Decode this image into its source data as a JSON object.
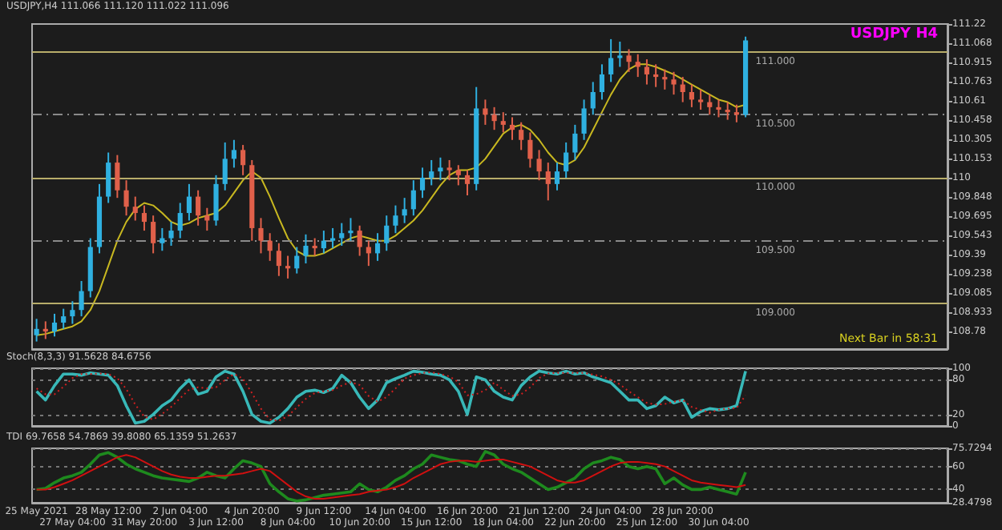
{
  "chart_data": [
    {
      "type": "candlestick",
      "title": "USDJPY,H4 111.066 111.120 111.022 111.096",
      "subtitle": "USDJPY H4",
      "annotations": [
        "Next Bar in 58:31"
      ],
      "categories": [
        null,
        null,
        null,
        null,
        null,
        null,
        null,
        null,
        null,
        null,
        null,
        null,
        null,
        null,
        null,
        null,
        null,
        null,
        null,
        null,
        null,
        null,
        null,
        null,
        null,
        null,
        null,
        null,
        null,
        null,
        null,
        null,
        null,
        null,
        null,
        null,
        null,
        null,
        null,
        null,
        null,
        null,
        null,
        null,
        null,
        null,
        null,
        null,
        null,
        null,
        null,
        null,
        null,
        null,
        null,
        null,
        null,
        null,
        null,
        null,
        null,
        null,
        null,
        null,
        null,
        null,
        null,
        null,
        null,
        null,
        null,
        null,
        null,
        null,
        null,
        null,
        null,
        null,
        null,
        null
      ],
      "series": [
        {
          "type": "candlestick",
          "ohlc": [
            [
              108.75,
              108.88,
              108.7,
              108.8
            ],
            [
              108.8,
              108.86,
              108.72,
              108.78
            ],
            [
              108.78,
              108.92,
              108.74,
              108.85
            ],
            [
              108.85,
              108.96,
              108.8,
              108.9
            ],
            [
              108.9,
              109.02,
              108.84,
              108.95
            ],
            [
              108.95,
              109.18,
              108.9,
              109.1
            ],
            [
              109.1,
              109.52,
              109.05,
              109.45
            ],
            [
              109.45,
              109.95,
              109.4,
              109.85
            ],
            [
              109.85,
              110.2,
              109.8,
              110.12
            ],
            [
              110.12,
              110.18,
              109.84,
              109.9
            ],
            [
              109.9,
              109.98,
              109.7,
              109.77
            ],
            [
              109.77,
              109.85,
              109.66,
              109.72
            ],
            [
              109.72,
              109.78,
              109.58,
              109.65
            ],
            [
              109.65,
              109.7,
              109.4,
              109.48
            ],
            [
              109.48,
              109.6,
              109.42,
              109.52
            ],
            [
              109.52,
              109.65,
              109.46,
              109.58
            ],
            [
              109.58,
              109.8,
              109.52,
              109.72
            ],
            [
              109.72,
              109.95,
              109.66,
              109.85
            ],
            [
              109.85,
              109.9,
              109.62,
              109.7
            ],
            [
              109.7,
              109.76,
              109.58,
              109.66
            ],
            [
              109.66,
              110.02,
              109.62,
              109.95
            ],
            [
              109.95,
              110.28,
              109.9,
              110.15
            ],
            [
              110.15,
              110.3,
              110.08,
              110.22
            ],
            [
              110.22,
              110.26,
              110.02,
              110.1
            ],
            [
              110.1,
              110.14,
              109.5,
              109.6
            ],
            [
              109.6,
              109.68,
              109.4,
              109.5
            ],
            [
              109.5,
              109.56,
              109.34,
              109.42
            ],
            [
              109.42,
              109.48,
              109.22,
              109.3
            ],
            [
              109.3,
              109.38,
              109.2,
              109.28
            ],
            [
              109.28,
              109.45,
              109.24,
              109.38
            ],
            [
              109.38,
              109.55,
              109.32,
              109.46
            ],
            [
              109.46,
              109.52,
              109.38,
              109.44
            ],
            [
              109.44,
              109.58,
              109.4,
              109.5
            ],
            [
              109.5,
              109.6,
              109.44,
              109.52
            ],
            [
              109.52,
              109.64,
              109.46,
              109.56
            ],
            [
              109.56,
              109.68,
              109.5,
              109.58
            ],
            [
              109.58,
              109.62,
              109.38,
              109.45
            ],
            [
              109.45,
              109.5,
              109.3,
              109.4
            ],
            [
              109.4,
              109.56,
              109.34,
              109.48
            ],
            [
              109.48,
              109.7,
              109.42,
              109.62
            ],
            [
              109.62,
              109.78,
              109.56,
              109.7
            ],
            [
              109.7,
              109.84,
              109.64,
              109.75
            ],
            [
              109.75,
              109.98,
              109.7,
              109.9
            ],
            [
              109.9,
              110.08,
              109.84,
              110.0
            ],
            [
              110.0,
              110.14,
              109.94,
              110.05
            ],
            [
              110.05,
              110.16,
              109.98,
              110.08
            ],
            [
              110.08,
              110.14,
              109.98,
              110.06
            ],
            [
              110.06,
              110.1,
              109.94,
              110.02
            ],
            [
              110.02,
              110.06,
              109.86,
              109.95
            ],
            [
              109.95,
              110.72,
              109.9,
              110.55
            ],
            [
              110.55,
              110.62,
              110.42,
              110.5
            ],
            [
              110.5,
              110.56,
              110.38,
              110.45
            ],
            [
              110.45,
              110.52,
              110.36,
              110.42
            ],
            [
              110.42,
              110.48,
              110.3,
              110.38
            ],
            [
              110.38,
              110.44,
              110.22,
              110.3
            ],
            [
              110.3,
              110.36,
              110.08,
              110.15
            ],
            [
              110.15,
              110.22,
              109.98,
              110.05
            ],
            [
              110.05,
              110.12,
              109.82,
              109.95
            ],
            [
              109.95,
              110.12,
              109.9,
              110.05
            ],
            [
              110.05,
              110.28,
              110.0,
              110.2
            ],
            [
              110.2,
              110.42,
              110.14,
              110.35
            ],
            [
              110.35,
              110.62,
              110.3,
              110.55
            ],
            [
              110.55,
              110.76,
              110.5,
              110.68
            ],
            [
              110.68,
              110.9,
              110.62,
              110.82
            ],
            [
              110.82,
              111.1,
              110.76,
              110.95
            ],
            [
              110.95,
              111.08,
              110.88,
              110.97
            ],
            [
              110.97,
              111.02,
              110.84,
              110.92
            ],
            [
              110.92,
              110.98,
              110.8,
              110.88
            ],
            [
              110.88,
              110.94,
              110.74,
              110.82
            ],
            [
              110.82,
              110.9,
              110.72,
              110.8
            ],
            [
              110.8,
              110.86,
              110.7,
              110.78
            ],
            [
              110.78,
              110.84,
              110.66,
              110.74
            ],
            [
              110.74,
              110.8,
              110.6,
              110.68
            ],
            [
              110.68,
              110.74,
              110.56,
              110.62
            ],
            [
              110.62,
              110.7,
              110.54,
              110.6
            ],
            [
              110.6,
              110.66,
              110.5,
              110.56
            ],
            [
              110.56,
              110.62,
              110.48,
              110.54
            ],
            [
              110.54,
              110.6,
              110.46,
              110.52
            ],
            [
              110.52,
              110.58,
              110.44,
              110.5
            ],
            [
              110.5,
              111.12,
              110.48,
              111.09
            ]
          ]
        },
        {
          "type": "line",
          "color": "#c8b820",
          "values": [
            108.75,
            108.76,
            108.78,
            108.8,
            108.82,
            108.86,
            108.95,
            109.1,
            109.3,
            109.5,
            109.65,
            109.75,
            109.8,
            109.78,
            109.72,
            109.65,
            109.62,
            109.64,
            109.68,
            109.7,
            109.72,
            109.78,
            109.88,
            109.98,
            110.05,
            110.0,
            109.85,
            109.68,
            109.52,
            109.42,
            109.38,
            109.38,
            109.4,
            109.44,
            109.48,
            109.52,
            109.54,
            109.52,
            109.5,
            109.5,
            109.54,
            109.6,
            109.66,
            109.74,
            109.84,
            109.94,
            110.02,
            110.06,
            110.06,
            110.08,
            110.15,
            110.25,
            110.35,
            110.4,
            110.42,
            110.38,
            110.3,
            110.2,
            110.12,
            110.1,
            110.14,
            110.24,
            110.38,
            110.52,
            110.66,
            110.78,
            110.86,
            110.9,
            110.9,
            110.88,
            110.85,
            110.82,
            110.78,
            110.74,
            110.7,
            110.66,
            110.62,
            110.6,
            110.56,
            110.58
          ]
        }
      ],
      "ylim": [
        108.64,
        111.22
      ],
      "yticks": [
        108.78,
        108.933,
        109.085,
        109.238,
        109.39,
        109.543,
        109.695,
        109.848,
        110,
        110.153,
        110.305,
        110.458,
        110.61,
        110.763,
        110.915,
        111.068,
        111.22
      ],
      "ref_lines": [
        {
          "axis": "y",
          "value": 111.0,
          "label": "111.000",
          "color": "#b8ad6a",
          "line_style": "solid"
        },
        {
          "axis": "y",
          "value": 110.5,
          "label": "110.500",
          "color": "#8a8a8a",
          "line_style": "dashed"
        },
        {
          "axis": "y",
          "value": 110.0,
          "label": "110.000",
          "color": "#b8ad6a",
          "line_style": "solid"
        },
        {
          "axis": "y",
          "value": 109.5,
          "label": "109.500",
          "color": "#8a8a8a",
          "line_style": "dashed"
        },
        {
          "axis": "y",
          "value": 109.0,
          "label": "109.000",
          "color": "#b8ad6a",
          "line_style": "solid"
        }
      ],
      "tick_labels": "y",
      "grid": false
    },
    {
      "type": "line",
      "title": "Stoch(8,3,3) 91.5628 84.6756",
      "categories": [
        null,
        null,
        null,
        null,
        null,
        null,
        null,
        null,
        null,
        null,
        null,
        null,
        null,
        null,
        null,
        null,
        null,
        null,
        null,
        null,
        null,
        null,
        null,
        null,
        null,
        null,
        null,
        null,
        null,
        null,
        null,
        null,
        null,
        null,
        null,
        null,
        null,
        null,
        null,
        null,
        null,
        null,
        null,
        null,
        null,
        null,
        null,
        null,
        null,
        null,
        null,
        null,
        null,
        null,
        null,
        null,
        null,
        null,
        null,
        null,
        null,
        null,
        null,
        null,
        null,
        null,
        null,
        null,
        null,
        null,
        null,
        null,
        null,
        null,
        null,
        null,
        null,
        null,
        null,
        null
      ],
      "series": [
        {
          "color": "#38b8b8",
          "line_style": "solid",
          "values": [
            60,
            45,
            70,
            90,
            90,
            88,
            92,
            90,
            88,
            70,
            35,
            5,
            8,
            20,
            35,
            45,
            65,
            80,
            55,
            60,
            85,
            95,
            90,
            60,
            20,
            8,
            5,
            15,
            30,
            50,
            60,
            62,
            58,
            65,
            88,
            75,
            50,
            30,
            45,
            75,
            82,
            88,
            95,
            93,
            90,
            88,
            80,
            60,
            20,
            85,
            80,
            60,
            50,
            45,
            70,
            85,
            95,
            92,
            90,
            95,
            90,
            92,
            85,
            80,
            75,
            60,
            45,
            45,
            30,
            35,
            50,
            40,
            45,
            15,
            25,
            30,
            28,
            30,
            35,
            95
          ]
        },
        {
          "color": "#d02020",
          "line_style": "dotted",
          "values": [
            65,
            55,
            55,
            68,
            83,
            90,
            90,
            91,
            90,
            83,
            64,
            37,
            16,
            11,
            21,
            33,
            48,
            63,
            67,
            65,
            67,
            80,
            90,
            82,
            57,
            30,
            11,
            9,
            17,
            32,
            47,
            57,
            60,
            62,
            70,
            76,
            71,
            52,
            42,
            50,
            65,
            82,
            88,
            92,
            93,
            90,
            86,
            76,
            53,
            55,
            62,
            75,
            63,
            52,
            55,
            67,
            83,
            91,
            92,
            92,
            92,
            92,
            89,
            86,
            80,
            72,
            60,
            50,
            40,
            37,
            38,
            42,
            45,
            33,
            28,
            23,
            28,
            30,
            31,
            53
          ]
        }
      ],
      "ylim": [
        0,
        100
      ],
      "yticks": [
        0,
        20,
        80,
        100
      ],
      "grid": "y",
      "tick_labels": "y"
    },
    {
      "type": "line",
      "title": "TDI 69.7658 54.7869 39.8080 65.1359 51.2637",
      "categories": [
        "25 May 2021",
        null,
        null,
        null,
        "27 May 04:00",
        null,
        null,
        null,
        "28 May 12:00",
        null,
        null,
        null,
        "31 May 20:00",
        null,
        null,
        null,
        "2 Jun 04:00",
        null,
        null,
        null,
        "3 Jun 12:00",
        null,
        null,
        null,
        "4 Jun 20:00",
        null,
        null,
        null,
        "8 Jun 04:00",
        null,
        null,
        null,
        "9 Jun 12:00",
        null,
        null,
        null,
        "10 Jun 20:00",
        null,
        null,
        null,
        "14 Jun 04:00",
        null,
        null,
        null,
        "15 Jun 12:00",
        null,
        null,
        null,
        "16 Jun 20:00",
        null,
        null,
        null,
        "18 Jun 04:00",
        null,
        null,
        null,
        "21 Jun 12:00",
        null,
        null,
        null,
        "22 Jun 20:00",
        null,
        null,
        null,
        "24 Jun 04:00",
        null,
        null,
        null,
        "25 Jun 12:00",
        null,
        null,
        null,
        "28 Jun 20:00",
        null,
        null,
        null,
        "30 Jun 04:00",
        null,
        null,
        null
      ],
      "series": [
        {
          "color": "#1e8a1e",
          "line_style": "solid",
          "values": [
            40,
            41,
            46,
            50,
            52,
            55,
            62,
            70,
            72,
            68,
            62,
            58,
            55,
            52,
            50,
            49,
            48,
            47,
            50,
            55,
            52,
            50,
            58,
            65,
            63,
            60,
            45,
            38,
            32,
            30,
            31,
            33,
            35,
            36,
            37,
            38,
            45,
            40,
            38,
            42,
            48,
            52,
            58,
            62,
            70,
            68,
            66,
            65,
            62,
            60,
            73,
            70,
            62,
            58,
            55,
            50,
            45,
            40,
            42,
            46,
            50,
            58,
            63,
            65,
            68,
            66,
            60,
            58,
            60,
            58,
            45,
            50,
            44,
            40,
            40,
            42,
            40,
            38,
            36,
            55
          ]
        },
        {
          "color": "#d01010",
          "line_style": "solid",
          "values": [
            40,
            40,
            42,
            45,
            48,
            52,
            56,
            60,
            64,
            68,
            70,
            68,
            64,
            60,
            56,
            53,
            51,
            50,
            50,
            51,
            52,
            52,
            53,
            54,
            56,
            58,
            56,
            50,
            44,
            38,
            34,
            32,
            32,
            33,
            34,
            35,
            36,
            38,
            39,
            40,
            42,
            45,
            50,
            54,
            58,
            62,
            64,
            65,
            65,
            64,
            65,
            66,
            66,
            64,
            62,
            60,
            56,
            52,
            48,
            46,
            46,
            48,
            52,
            56,
            60,
            63,
            64,
            64,
            63,
            62,
            60,
            56,
            52,
            48,
            46,
            45,
            44,
            43,
            42,
            44
          ]
        }
      ],
      "ylim": [
        28.4798,
        75.7294
      ],
      "yticks": [
        28.4798,
        40,
        60,
        75.7294
      ],
      "grid": "y"
    }
  ]
}
